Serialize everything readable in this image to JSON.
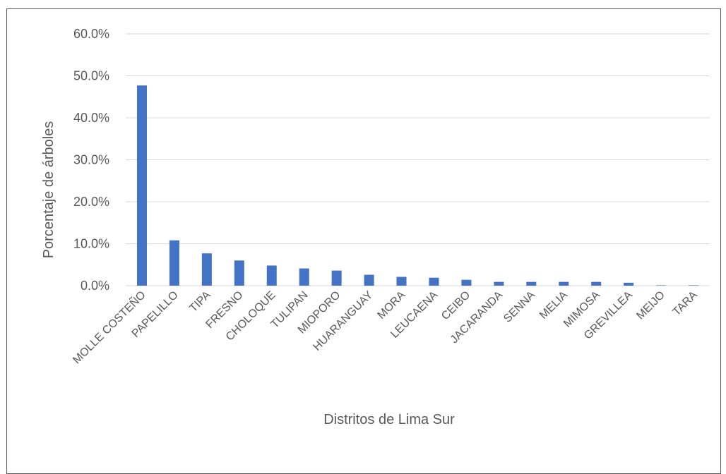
{
  "chart_data": {
    "type": "bar",
    "categories": [
      "MOLLE COSTEÑO",
      "PAPELILLO",
      "TIPA",
      "FRESNO",
      "CHOLOQUE",
      "TULIPAN",
      "MIOPORO",
      "HUARANGUAY",
      "MORA",
      "LEUCAENA",
      "CEIBO",
      "JACARANDA",
      "SENNA",
      "MELIA",
      "MIMOSA",
      "GREVILLEA",
      "MEIJO",
      "TARA"
    ],
    "values": [
      47.7,
      10.8,
      7.7,
      6.0,
      4.8,
      4.1,
      3.6,
      2.6,
      2.1,
      1.9,
      1.4,
      0.9,
      0.9,
      0.9,
      0.9,
      0.7,
      0.1,
      0.1
    ],
    "xlabel": "Distritos de Lima Sur",
    "ylabel": "Porcentaje de árboles",
    "ylim": [
      0,
      60
    ],
    "yticks": [
      "0.0%",
      "10.0%",
      "20.0%",
      "30.0%",
      "40.0%",
      "50.0%",
      "60.0%"
    ],
    "grid": true,
    "bar_color": "#4472C4",
    "grid_color": "#D9D9D9"
  }
}
